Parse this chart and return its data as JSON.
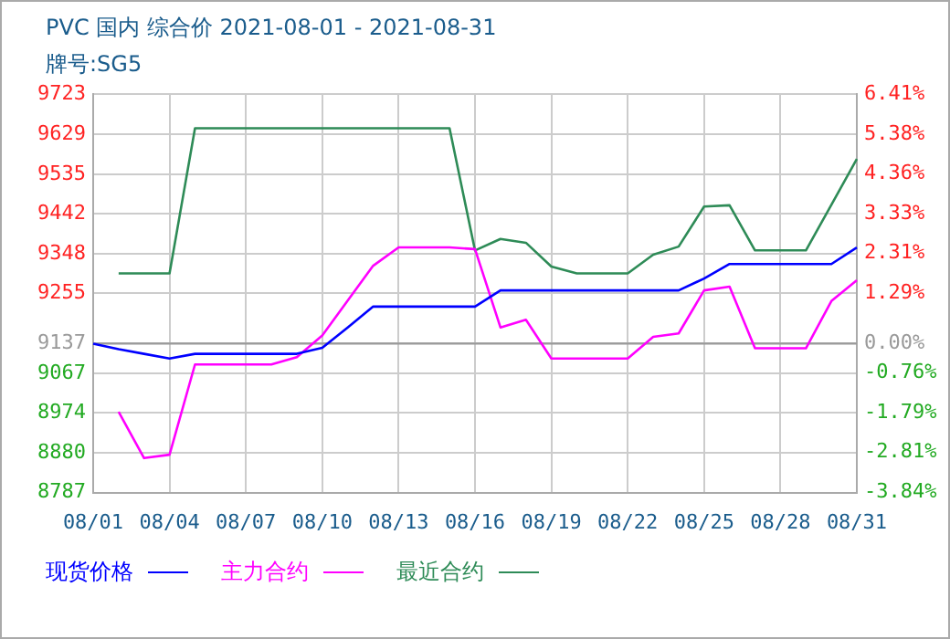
{
  "chart_data": {
    "type": "line",
    "title": "PVC 国内 综合价 2021-08-01 - 2021-08-31",
    "subtitle": "牌号:SG5",
    "categories": [
      "08/01",
      null,
      null,
      "08/04",
      null,
      null,
      "08/07",
      null,
      null,
      "08/10",
      null,
      null,
      "08/13",
      null,
      null,
      "08/16",
      null,
      null,
      "08/19",
      null,
      null,
      "08/22",
      null,
      null,
      "08/25",
      null,
      null,
      "08/28",
      null,
      null,
      "08/31"
    ],
    "series": [
      {
        "name": "现货价格",
        "color": "#0000ff",
        "values": [
          9137,
          9124,
          9113,
          9102,
          9113,
          9113,
          9113,
          9113,
          9113,
          9127,
          9175,
          9224,
          9224,
          9224,
          9224,
          9224,
          9262,
          9262,
          9262,
          9262,
          9262,
          9262,
          9262,
          9262,
          9290,
          9324,
          9324,
          9324,
          9324,
          9324,
          9363
        ]
      },
      {
        "name": "主力合约",
        "color": "#ff00ff",
        "values": [
          null,
          8977,
          8868,
          8876,
          9088,
          9088,
          9088,
          9088,
          9105,
          9156,
          9238,
          9320,
          9363,
          9363,
          9363,
          9359,
          9175,
          9193,
          9102,
          9102,
          9102,
          9102,
          9153,
          9161,
          9262,
          9271,
          9126,
          9126,
          9126,
          9237,
          9286
        ]
      },
      {
        "name": "最近合约",
        "color": "#2e8b57",
        "values": [
          null,
          9302,
          9302,
          9302,
          9643,
          9643,
          9643,
          9643,
          9643,
          9643,
          9643,
          9643,
          9643,
          9643,
          9643,
          9356,
          9383,
          9374,
          9318,
          9302,
          9302,
          9302,
          9346,
          9365,
          9459,
          9462,
          9356,
          9356,
          9356,
          9463,
          9571
        ]
      }
    ],
    "ylim": [
      8787,
      9723
    ],
    "yticks": [
      8787,
      8880,
      8974,
      9067,
      9137,
      9255,
      9348,
      9442,
      9535,
      9629,
      9723
    ],
    "y2lim": [
      -3.84,
      6.41
    ],
    "y2ticks": [
      {
        "value": -3.84,
        "label": "-3.84%"
      },
      {
        "value": -2.81,
        "label": "-2.81%"
      },
      {
        "value": -1.79,
        "label": "-1.79%"
      },
      {
        "value": -0.76,
        "label": "-0.76%"
      },
      {
        "value": 0,
        "label": "0.00%"
      },
      {
        "value": 1.29,
        "label": "1.29%"
      },
      {
        "value": 2.31,
        "label": "2.31%"
      },
      {
        "value": 3.33,
        "label": "3.33%"
      },
      {
        "value": 4.36,
        "label": "4.36%"
      },
      {
        "value": 5.38,
        "label": "5.38%"
      },
      {
        "value": 6.41,
        "label": "6.41%"
      }
    ],
    "ref_lines": [
      {
        "axis": "y",
        "value": 9137,
        "color": "#999999"
      }
    ],
    "grid": true,
    "legend": "bottom",
    "marker": "none",
    "line_style": "solid"
  }
}
